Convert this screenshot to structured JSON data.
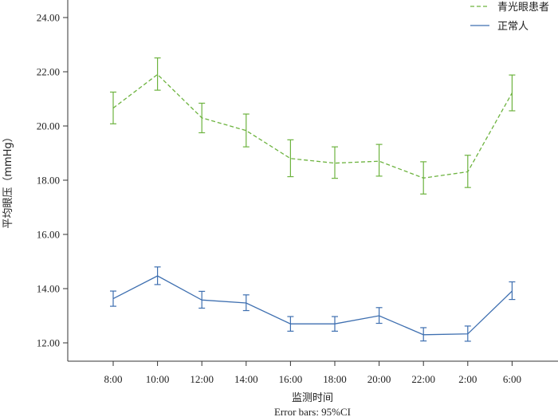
{
  "chart_data": {
    "type": "line",
    "xlabel": "监测时间",
    "ylabel": "平均眼压（mmHg）",
    "footnote": "Error bars: 95%CI",
    "categories": [
      "8:00",
      "10:00",
      "12:00",
      "14:00",
      "16:00",
      "18:00",
      "20:00",
      "22:00",
      "2:00",
      "6:00"
    ],
    "ylim": [
      11.5,
      24.5
    ],
    "yticks": [
      "12.00",
      "14.00",
      "16.00",
      "18.00",
      "20.00",
      "22.00",
      "24.00"
    ],
    "legend_position": "top-right",
    "series": [
      {
        "name": "青光眼患者",
        "color": "#6db33f",
        "dash": "dashed",
        "values": [
          20.66,
          21.9,
          20.3,
          19.83,
          18.8,
          18.63,
          18.7,
          18.08,
          18.31,
          21.22
        ],
        "lower": [
          20.08,
          21.32,
          19.75,
          19.23,
          18.13,
          18.07,
          18.15,
          17.49,
          17.73,
          20.56
        ],
        "upper": [
          21.25,
          22.51,
          20.84,
          20.44,
          19.49,
          19.23,
          19.32,
          18.68,
          18.92,
          21.88
        ]
      },
      {
        "name": "正常人",
        "color": "#3e6fb0",
        "dash": "solid",
        "values": [
          13.63,
          14.47,
          13.58,
          13.47,
          12.7,
          12.7,
          13.0,
          12.3,
          12.33,
          13.91
        ],
        "lower": [
          13.35,
          14.15,
          13.28,
          13.19,
          12.43,
          12.43,
          12.72,
          12.07,
          12.06,
          13.6
        ],
        "upper": [
          13.91,
          14.8,
          13.9,
          13.77,
          12.97,
          12.97,
          13.3,
          12.56,
          12.62,
          14.25
        ]
      }
    ]
  }
}
